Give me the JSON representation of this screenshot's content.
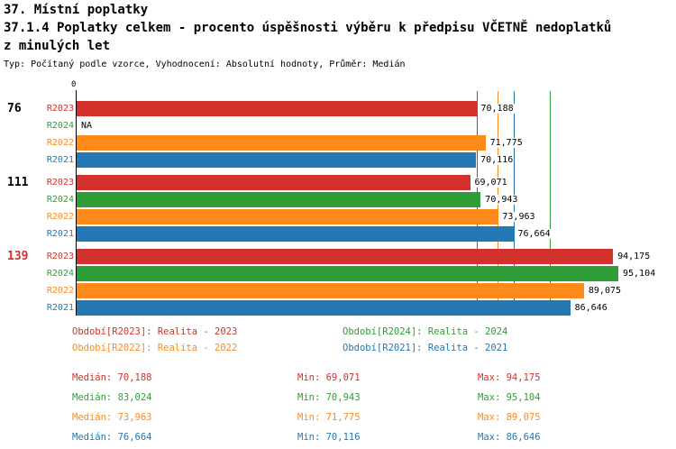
{
  "header": {
    "title": "37. Místní poplatky",
    "subtitle_line1": "37.1.4 Poplatky celkem - procento úspěšnosti výběru k předpisu VČETNĚ nedoplatků",
    "subtitle_line2": "z minulých let",
    "meta": "Typ: Počítaný podle vzorce, Vyhodnocení: Absolutní hodnoty, Průměr: Medián"
  },
  "colors": {
    "R2023": "#d2322b",
    "R2024": "#2f9e38",
    "R2022": "#ff8a1c",
    "R2021": "#2478b4"
  },
  "chart_data": {
    "type": "bar",
    "orientation": "horizontal",
    "axis_origin_label": "0",
    "x_axis_min": 0,
    "x_axis_max": 95104,
    "grid": false,
    "legend_position": "bottom",
    "groups": [
      {
        "label": "76",
        "label_color": "#000000",
        "bars": [
          {
            "series": "R2023",
            "value": 70188,
            "label": "70,188"
          },
          {
            "series": "R2024",
            "value": null,
            "label": "NA"
          },
          {
            "series": "R2022",
            "value": 71775,
            "label": "71,775"
          },
          {
            "series": "R2021",
            "value": 70116,
            "label": "70,116"
          }
        ]
      },
      {
        "label": "111",
        "label_color": "#000000",
        "bars": [
          {
            "series": "R2023",
            "value": 69071,
            "label": "69,071"
          },
          {
            "series": "R2024",
            "value": 70943,
            "label": "70,943"
          },
          {
            "series": "R2022",
            "value": 73963,
            "label": "73,963"
          },
          {
            "series": "R2021",
            "value": 76664,
            "label": "76,664"
          }
        ]
      },
      {
        "label": "139",
        "label_color": "#d2322b",
        "bars": [
          {
            "series": "R2023",
            "value": 94175,
            "label": "94,175"
          },
          {
            "series": "R2024",
            "value": 95104,
            "label": "95,104"
          },
          {
            "series": "R2022",
            "value": 89075,
            "label": "89,075"
          },
          {
            "series": "R2021",
            "value": 86646,
            "label": "86,646"
          }
        ]
      }
    ],
    "median_lines": [
      {
        "series": "R2023",
        "value": 70188
      },
      {
        "series": "R2022",
        "value": 73963
      },
      {
        "series": "R2021",
        "value": 76664
      },
      {
        "series": "R2024",
        "value": 83024
      }
    ],
    "legend": [
      {
        "series": "R2023",
        "text": "Období[R2023]: Realita - 2023"
      },
      {
        "series": "R2024",
        "text": "Období[R2024]: Realita - 2024"
      },
      {
        "series": "R2022",
        "text": "Období[R2022]: Realita - 2022"
      },
      {
        "series": "R2021",
        "text": "Období[R2021]: Realita - 2021"
      }
    ],
    "stats": [
      {
        "series": "R2023",
        "median": "Medián: 70,188",
        "min": "Min: 69,071",
        "max": "Max: 94,175"
      },
      {
        "series": "R2024",
        "median": "Medián: 83,024",
        "min": "Min: 70,943",
        "max": "Max: 95,104"
      },
      {
        "series": "R2022",
        "median": "Medián: 73,963",
        "min": "Min: 71,775",
        "max": "Max: 89,075"
      },
      {
        "series": "R2021",
        "median": "Medián: 76,664",
        "min": "Min: 70,116",
        "max": "Max: 86,646"
      }
    ]
  }
}
